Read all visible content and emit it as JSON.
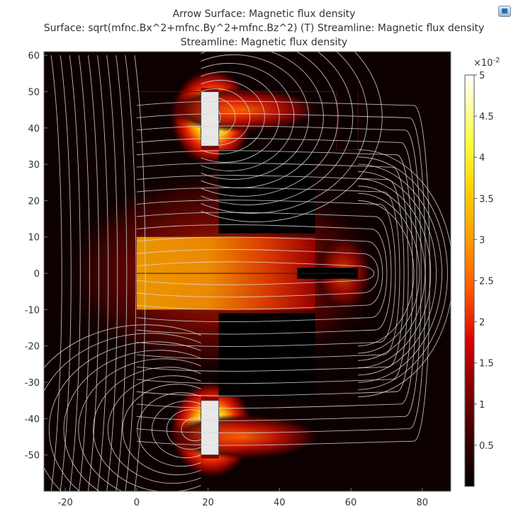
{
  "header": {
    "titles": [
      "Arrow Surface: Magnetic flux density",
      "Surface: sqrt(mfnc.Bx^2+mfnc.By^2+mfnc.Bz^2) (T)  Streamline: Magnetic flux density",
      "Streamline: Magnetic flux density"
    ],
    "app_icon": "comsol-plot-icon"
  },
  "chart_data": {
    "type": "heatmap",
    "title": "Arrow Surface: Magnetic flux density",
    "subtitle": "Surface: sqrt(mfnc.Bx^2+mfnc.By^2+mfnc.Bz^2) (T)  Streamline: Magnetic flux density",
    "subtitle2": "Streamline: Magnetic flux density",
    "xlabel": "",
    "ylabel": "",
    "xlim": [
      -26,
      88
    ],
    "ylim": [
      -60,
      61
    ],
    "x_ticks": [
      "-20",
      "0",
      "20",
      "40",
      "60",
      "80"
    ],
    "x_tick_values": [
      -20,
      0,
      20,
      40,
      60,
      80
    ],
    "y_ticks": [
      "60",
      "50",
      "40",
      "30",
      "20",
      "10",
      "0",
      "-10",
      "-20",
      "-30",
      "-40",
      "-50"
    ],
    "y_tick_values": [
      60,
      50,
      40,
      30,
      20,
      10,
      0,
      -10,
      -20,
      -30,
      -40,
      -50
    ],
    "colorbar": {
      "exponent_label": "×10",
      "exponent": "-2",
      "range": [
        0,
        5
      ],
      "ticks": [
        "5",
        "4.5",
        "4",
        "3.5",
        "3",
        "2.5",
        "2",
        "1.5",
        "1",
        "0.5"
      ],
      "tick_values": [
        5,
        4.5,
        4,
        3.5,
        3,
        2.5,
        2,
        1.5,
        1,
        0.5
      ],
      "colormap": [
        "#000000",
        "#2b0000",
        "#6a0000",
        "#b00000",
        "#e62000",
        "#ff6a00",
        "#ffb000",
        "#ffe600",
        "#ffff80",
        "#ffffff"
      ]
    },
    "grid": false,
    "background_color": "#0d0000",
    "streamline_color": "#d9d9d9"
  }
}
